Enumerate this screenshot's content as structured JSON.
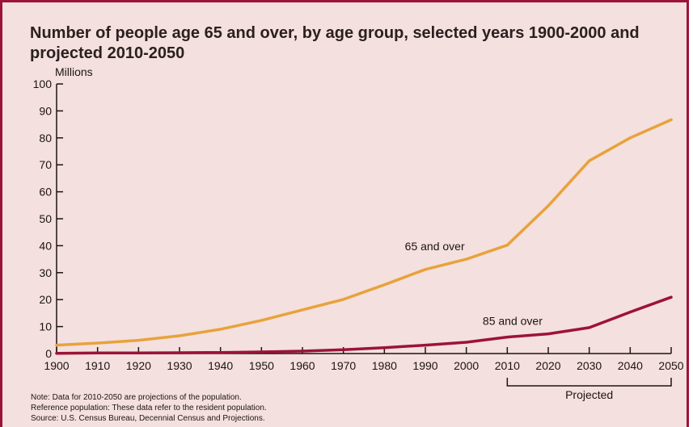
{
  "chart_data": {
    "type": "line",
    "title": "Number of people age 65 and over, by age group, selected years 1900-2000 and projected 2010-2050",
    "ylabel": "Millions",
    "xlabel": "",
    "x": [
      1900,
      1910,
      1920,
      1930,
      1940,
      1950,
      1960,
      1970,
      1980,
      1990,
      2000,
      2010,
      2020,
      2030,
      2040,
      2050
    ],
    "ylim": [
      0,
      100
    ],
    "xlim": [
      1900,
      2050
    ],
    "yticks": [
      "0",
      "10",
      "20",
      "30",
      "40",
      "50",
      "60",
      "70",
      "80",
      "90",
      "100"
    ],
    "xticks": [
      "1900",
      "1910",
      "1920",
      "1930",
      "1940",
      "1950",
      "1960",
      "1970",
      "1980",
      "1990",
      "2000",
      "2010",
      "2020",
      "2030",
      "2040",
      "2050"
    ],
    "series": [
      {
        "name": "65 and over",
        "color": "#e8a23c",
        "values": [
          3.1,
          3.9,
          4.9,
          6.6,
          9.0,
          12.3,
          16.2,
          20.1,
          25.5,
          31.2,
          35.0,
          40.2,
          54.8,
          71.5,
          80.0,
          86.7
        ]
      },
      {
        "name": "85 and over",
        "color": "#9c1338",
        "values": [
          0.1,
          0.2,
          0.2,
          0.3,
          0.4,
          0.6,
          0.9,
          1.4,
          2.2,
          3.1,
          4.2,
          6.1,
          7.3,
          9.6,
          15.4,
          20.9
        ]
      }
    ],
    "projected_label": "Projected",
    "grid": false
  },
  "notes": [
    "Note: Data for 2010-2050 are projections of the population.",
    "Reference population: These data refer to the resident population.",
    "Source: U.S. Census Bureau, Decennial Census and Projections."
  ],
  "colors": {
    "frame": "#9c1338",
    "background": "#f4e0de"
  }
}
